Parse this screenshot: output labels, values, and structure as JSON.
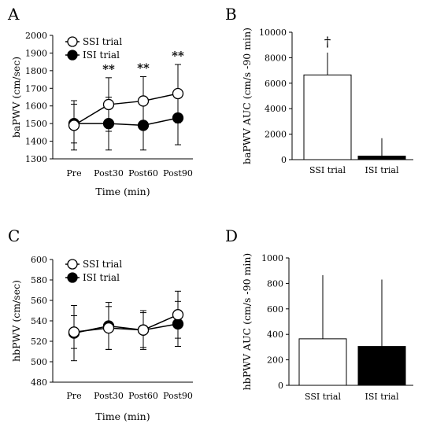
{
  "colors": {
    "axis": "#000000",
    "ssi_fill": "#ffffff",
    "isi_fill": "#000000"
  },
  "chart_data": [
    {
      "panel": "A",
      "type": "line",
      "xlabel": "Time (min)",
      "ylabel": "baPWV (cm/sec)",
      "categories": [
        "Pre",
        "Post30",
        "Post60",
        "Post90"
      ],
      "ylim": [
        1300,
        2000
      ],
      "yticks": [
        "1300",
        "1400",
        "1500",
        "1600",
        "1700",
        "1800",
        "1900",
        "2000"
      ],
      "legend_position": "top-left",
      "series": [
        {
          "name": "SSI trial",
          "marker": "open-circle",
          "values": [
            1490,
            1608,
            1628,
            1670
          ],
          "errors": [
            140,
            152,
            138,
            165
          ]
        },
        {
          "name": "ISI trial",
          "marker": "filled-circle",
          "values": [
            1500,
            1500,
            1490,
            1532
          ],
          "errors": [
            110,
            150,
            140,
            152
          ]
        }
      ],
      "annotations": [
        {
          "category": "Post30",
          "text": "**"
        },
        {
          "category": "Post60",
          "text": "**"
        },
        {
          "category": "Post90",
          "text": "**"
        }
      ]
    },
    {
      "panel": "B",
      "type": "bar",
      "ylabel": "baPWV AUC (cm/s -90 min)",
      "categories": [
        "SSI trial",
        "ISI trial"
      ],
      "values": [
        6650,
        280
      ],
      "errors": [
        1750,
        1400
      ],
      "ylim": [
        0,
        10000
      ],
      "yticks": [
        "0",
        "2000",
        "4000",
        "6000",
        "8000",
        "10000"
      ],
      "annotations": [
        {
          "category": "SSI trial",
          "text": "†"
        }
      ]
    },
    {
      "panel": "C",
      "type": "line",
      "xlabel": "Time (min)",
      "ylabel": "hbPWV (cm/sec)",
      "categories": [
        "Pre",
        "Post30",
        "Post60",
        "Post90"
      ],
      "ylim": [
        480,
        600
      ],
      "yticks": [
        "480",
        "500",
        "520",
        "540",
        "560",
        "580",
        "600"
      ],
      "legend_position": "top-left",
      "series": [
        {
          "name": "SSI trial",
          "marker": "open-circle",
          "values": [
            529,
            533,
            531,
            546
          ],
          "errors": [
            16,
            21,
            17,
            23
          ]
        },
        {
          "name": "ISI trial",
          "marker": "filled-circle",
          "values": [
            528,
            535,
            531,
            537
          ],
          "errors": [
            27,
            23,
            19,
            22
          ]
        }
      ]
    },
    {
      "panel": "D",
      "type": "bar",
      "ylabel": "hbPWV AUC (cm/s -90 min)",
      "categories": [
        "SSI trial",
        "ISI trial"
      ],
      "values": [
        365,
        305
      ],
      "errors": [
        500,
        525
      ],
      "ylim": [
        0,
        1000
      ],
      "yticks": [
        "0",
        "200",
        "400",
        "600",
        "800",
        "1000"
      ]
    }
  ]
}
